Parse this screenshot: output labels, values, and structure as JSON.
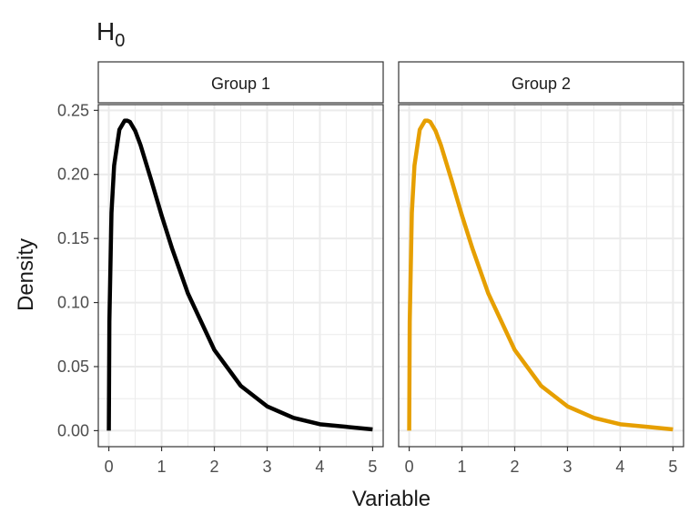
{
  "chart_data": {
    "type": "line",
    "title_main": "H",
    "title_sub": "0",
    "xlabel": "Variable",
    "ylabel": "Density",
    "xlim": [
      -0.2,
      5.2
    ],
    "ylim": [
      -0.0125,
      0.2545
    ],
    "x_ticks": [
      0,
      1,
      2,
      3,
      4,
      5
    ],
    "x_tick_labels": [
      "0",
      "1",
      "2",
      "3",
      "4",
      "5"
    ],
    "y_ticks": [
      0,
      0.05,
      0.1,
      0.15,
      0.2,
      0.25
    ],
    "y_tick_labels": [
      "0.00",
      "0.05",
      "0.10",
      "0.15",
      "0.20",
      "0.25"
    ],
    "grid": true,
    "panels": [
      {
        "strip_label": "Group 1",
        "color": "#000000",
        "x": [
          0,
          0.01,
          0.05,
          0.1,
          0.2,
          0.3,
          0.35,
          0.4,
          0.5,
          0.6,
          0.8,
          1.0,
          1.2,
          1.5,
          2.0,
          2.5,
          3.0,
          3.5,
          4.0,
          4.5,
          5.0
        ],
        "y": [
          0,
          0.085,
          0.17,
          0.207,
          0.235,
          0.242,
          0.242,
          0.241,
          0.234,
          0.223,
          0.196,
          0.168,
          0.142,
          0.107,
          0.063,
          0.035,
          0.019,
          0.01,
          0.005,
          0.003,
          0.001
        ]
      },
      {
        "strip_label": "Group 2",
        "color": "#E69F00",
        "x": [
          0,
          0.01,
          0.05,
          0.1,
          0.2,
          0.3,
          0.35,
          0.4,
          0.5,
          0.6,
          0.8,
          1.0,
          1.2,
          1.5,
          2.0,
          2.5,
          3.0,
          3.5,
          4.0,
          4.5,
          5.0
        ],
        "y": [
          0,
          0.085,
          0.17,
          0.207,
          0.235,
          0.242,
          0.242,
          0.241,
          0.234,
          0.223,
          0.196,
          0.168,
          0.142,
          0.107,
          0.063,
          0.035,
          0.019,
          0.01,
          0.005,
          0.003,
          0.001
        ]
      }
    ]
  }
}
